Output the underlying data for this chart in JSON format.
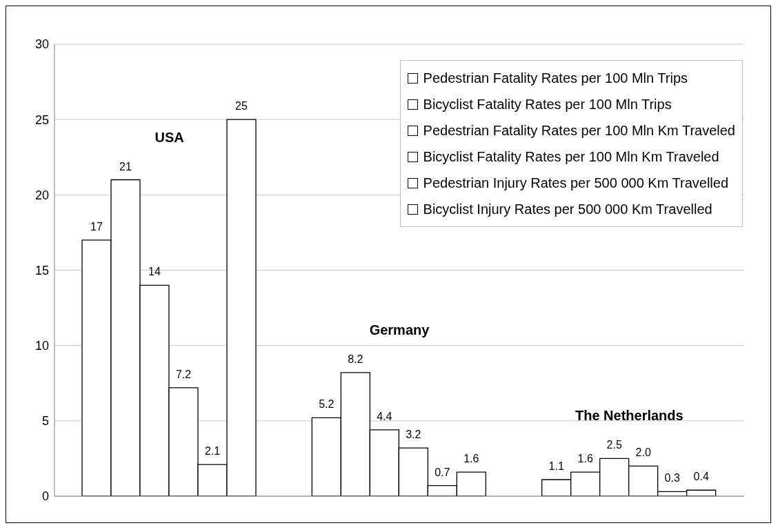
{
  "chart_data": {
    "type": "bar",
    "categories": [
      "USA",
      "Germany",
      "The Netherlands"
    ],
    "series": [
      {
        "name": "Pedestrian Fatality Rates per 100 Mln Trips",
        "color": "#ffffff",
        "values": [
          17,
          5.2,
          1.1
        ],
        "value_labels": [
          "17",
          "5.2",
          "1.1"
        ]
      },
      {
        "name": "Bicyclist Fatality Rates per 100 Mln Trips",
        "color": "#ffffff",
        "values": [
          21,
          8.2,
          1.6
        ],
        "value_labels": [
          "21",
          "8.2",
          "1.6"
        ]
      },
      {
        "name": "Pedestrian Fatality Rates per 100 Mln Km Traveled",
        "color": "#ffffff",
        "values": [
          14,
          4.4,
          2.5
        ],
        "value_labels": [
          "14",
          "4.4",
          "2.5"
        ]
      },
      {
        "name": "Bicyclist Fatality Rates per 100 Mln Km Traveled",
        "color": "#ffffff",
        "values": [
          7.2,
          3.2,
          2.0
        ],
        "value_labels": [
          "7.2",
          "3.2",
          "2.0"
        ]
      },
      {
        "name": "Pedestrian Injury Rates per 500 000 Km Travelled",
        "color": "#ffffff",
        "values": [
          2.1,
          0.7,
          0.3
        ],
        "value_labels": [
          "2.1",
          "0.7",
          "0.3"
        ]
      },
      {
        "name": "Bicyclist Injury Rates per 500 000 Km Travelled",
        "color": "#ffffff",
        "values": [
          25,
          1.6,
          0.4
        ],
        "value_labels": [
          "25",
          "1.6",
          "0.4"
        ]
      }
    ],
    "ylim": [
      0,
      30
    ],
    "yticks": [
      0,
      5,
      10,
      15,
      20,
      25,
      30
    ],
    "grid": "y",
    "legend": "top right"
  }
}
